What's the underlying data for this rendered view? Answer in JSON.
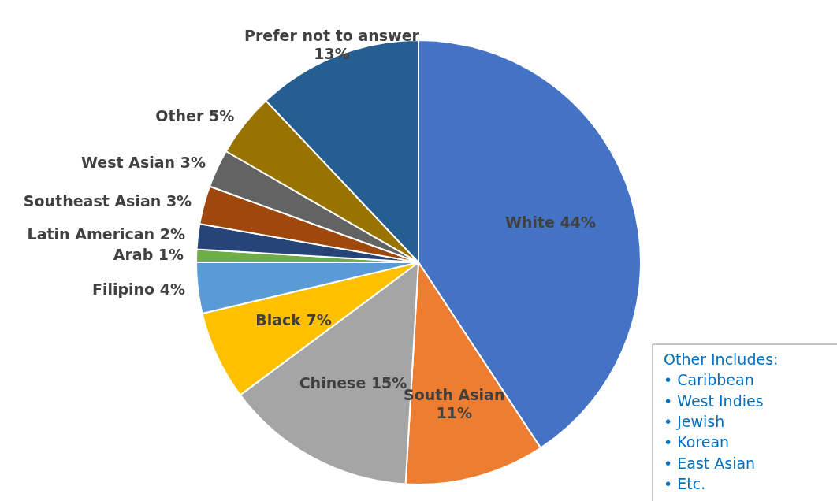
{
  "chart_data": {
    "type": "pie",
    "categories": [
      "White",
      "South Asian",
      "Chinese",
      "Black",
      "Filipino",
      "Arab",
      "Latin American",
      "Southeast Asian",
      "West Asian",
      "Other",
      "Prefer not to answer"
    ],
    "values": [
      44,
      11,
      15,
      7,
      4,
      1,
      2,
      3,
      3,
      5,
      13
    ],
    "colors": [
      "#4472c4",
      "#ed7d31",
      "#a5a5a5",
      "#ffc000",
      "#5b9bd5",
      "#70ad47",
      "#264478",
      "#9e480e",
      "#636363",
      "#997300",
      "#255e91"
    ],
    "value_labels": [
      "44%",
      "11%",
      "15%",
      "7%",
      "4%",
      "1%",
      "2%",
      "3%",
      "3%",
      "5%",
      "13%"
    ],
    "annotations": [
      "Other Includes:",
      "• Caribbean",
      "• West Indies",
      "• Jewish",
      "• Korean",
      "• East Asian",
      "• Etc."
    ]
  }
}
